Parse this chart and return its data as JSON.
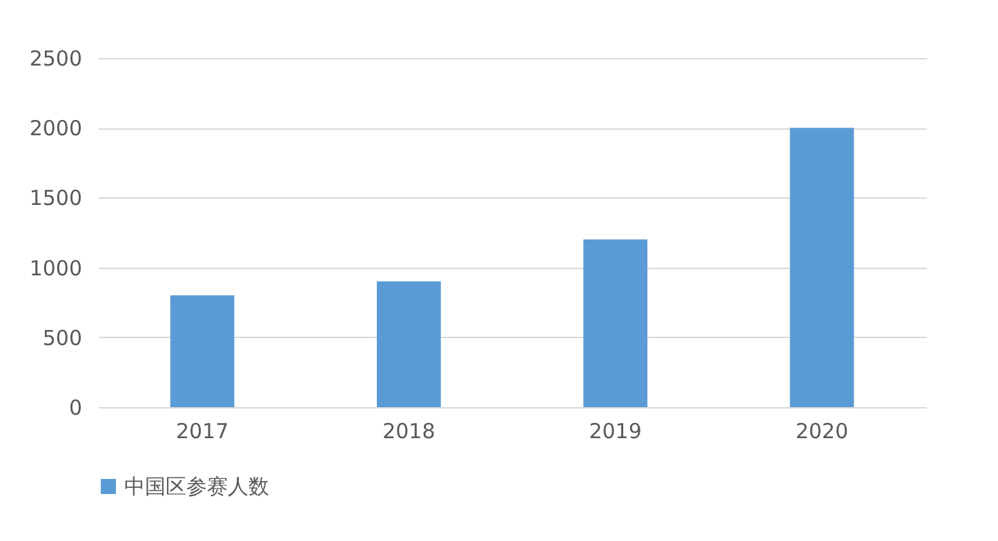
{
  "chart_data": {
    "type": "bar",
    "categories": [
      "2017",
      "2018",
      "2019",
      "2020"
    ],
    "series": [
      {
        "name": "中国区参赛人数",
        "color": "#5b9bd5",
        "values": [
          800,
          900,
          1200,
          2000
        ]
      }
    ],
    "ylim": [
      0,
      2500
    ],
    "yticks": [
      0,
      500,
      1000,
      1500,
      2000,
      2500
    ],
    "grid": "y",
    "legend": "bottom"
  }
}
